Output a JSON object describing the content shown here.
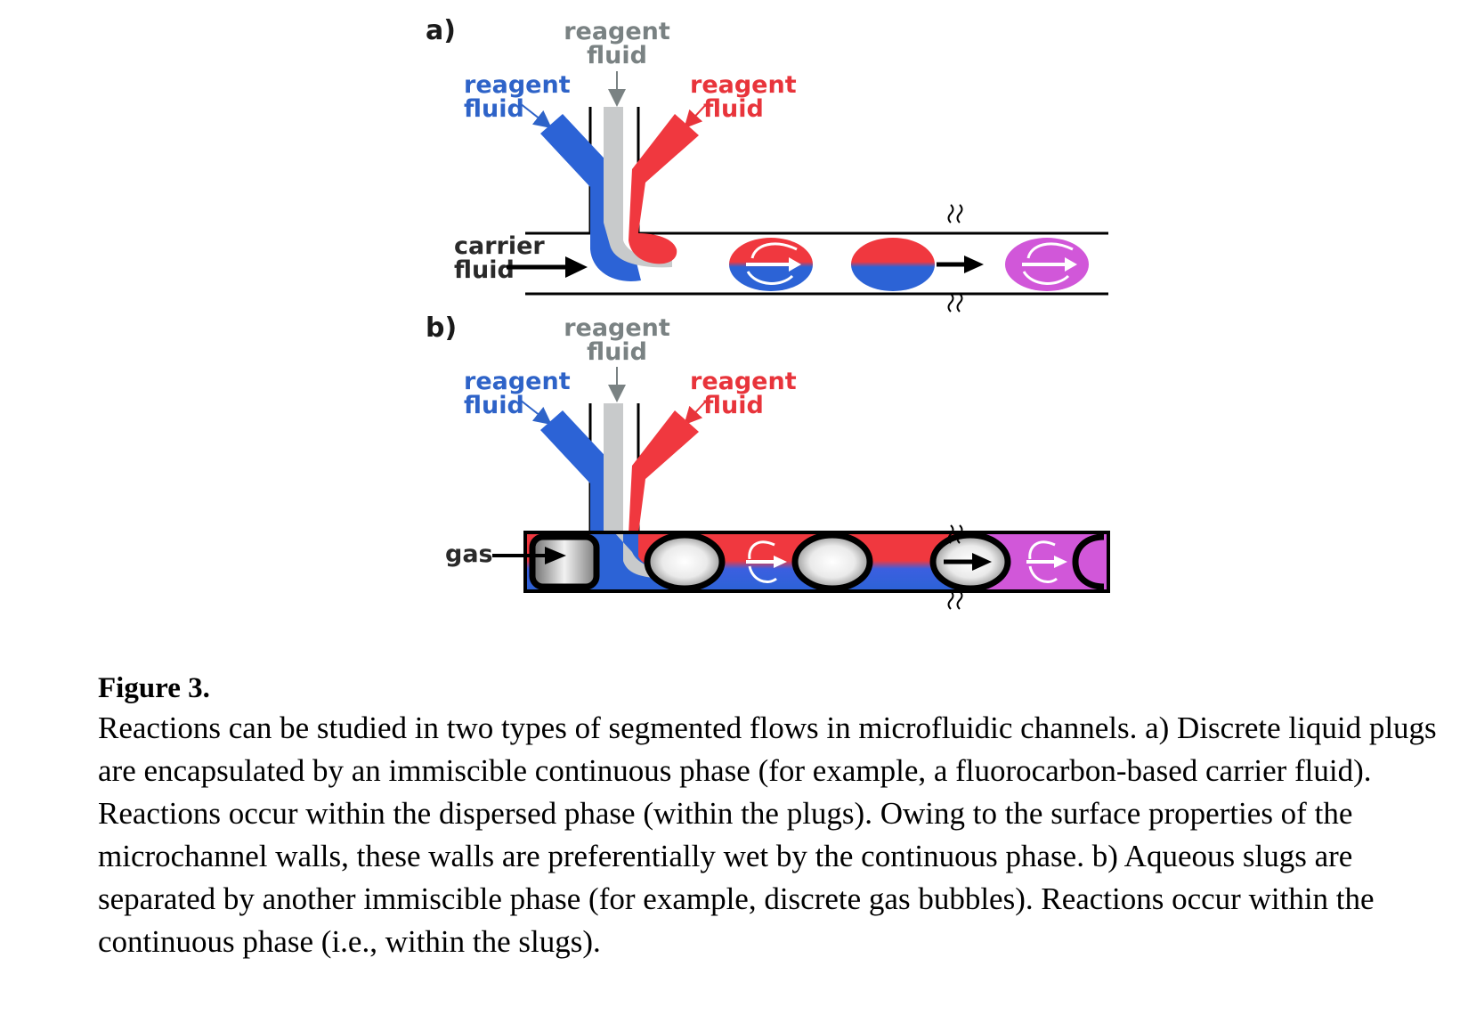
{
  "figure": {
    "panel_a": {
      "letter": "a)",
      "top_label_line1": "reagent",
      "top_label_line2": "fluid",
      "left_label_line1": "reagent",
      "left_label_line2": "fluid",
      "right_label_line1": "reagent",
      "right_label_line2": "fluid",
      "carrier_label_line1": "carrier",
      "carrier_label_line2": "fluid"
    },
    "panel_b": {
      "letter": "b)",
      "top_label_line1": "reagent",
      "top_label_line2": "fluid",
      "left_label_line1": "reagent",
      "left_label_line2": "fluid",
      "right_label_line1": "reagent",
      "right_label_line2": "fluid",
      "gas_label": "gas"
    },
    "colors": {
      "blue": "#2c63d6",
      "red": "#f0383f",
      "gray": "#c8cacb",
      "magenta": "#d157d9",
      "label_gray": "#7a8283",
      "label_blue": "#2e63c8",
      "label_red": "#e8343b"
    }
  },
  "caption": {
    "title": "Figure 3.",
    "text": "Reactions can be studied in two types of segmented flows in microfluidic channels. a) Discrete liquid plugs are encapsulated by an immiscible continuous phase (for example, a fluorocarbon-based carrier fluid). Reactions occur within the dispersed phase (within the plugs). Owing to the surface properties of the microchannel walls, these walls are preferentially wet by the continuous phase. b) Aqueous slugs are separated by another immiscible phase (for example, discrete gas bubbles). Reactions occur within the continuous phase (i.e., within the slugs)."
  }
}
